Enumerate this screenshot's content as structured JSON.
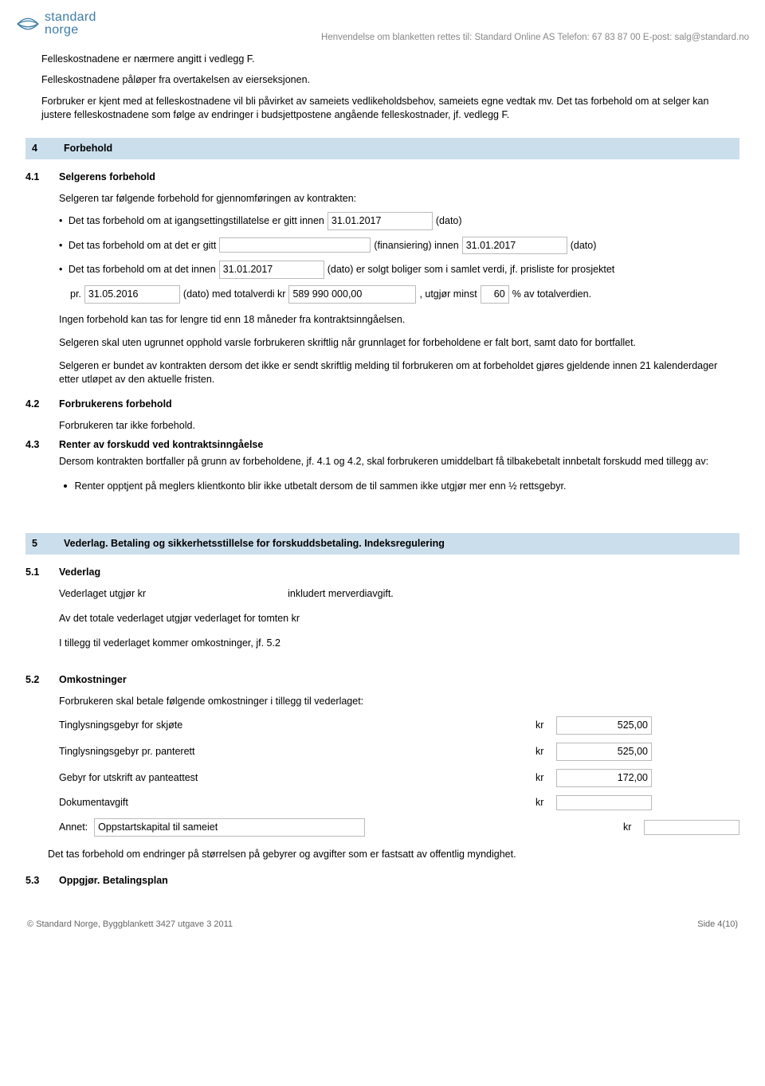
{
  "header": {
    "logo_line1": "standard",
    "logo_line2": "norge",
    "meta": "Henvendelse om blanketten rettes til: Standard Online AS   Telefon:  67 83 87 00   E-post: salg@standard.no"
  },
  "intro": {
    "p1": "Felleskostnadene er nærmere angitt i vedlegg F.",
    "p2": "Felleskostnadene påløper fra overtakelsen av eierseksjonen.",
    "p3": "Forbruker er kjent med at felleskostnadene vil bli påvirket av sameiets vedlikeholdsbehov, sameiets egne vedtak mv. Det tas forbehold om at selger kan justere felleskostnadene som følge av endringer i budsjettpostene angående felleskostnader, jf. vedlegg F."
  },
  "s4": {
    "num": "4",
    "title": "Forbehold",
    "s41": {
      "num": "4.1",
      "title": "Selgerens forbehold",
      "lead": "Selgeren tar følgende forbehold for gjennomføringen av kontrakten:",
      "b1_pre": "Det tas forbehold om at igangsettingstillatelse er gitt innen",
      "b1_date": "31.01.2017",
      "b1_suf": "(dato)",
      "b2_pre": "Det tas forbehold om at det er gitt",
      "b2_finan": "",
      "b2_mid": "(finansiering) innen",
      "b2_date": "31.01.2017",
      "b2_suf": "(dato)",
      "b3_pre": "Det tas forbehold om at det innen",
      "b3_date": "31.01.2017",
      "b3_suf": "(dato) er solgt boliger som i samlet verdi, jf. prisliste for prosjektet",
      "b3_pr": "pr.",
      "b3_date2": "31.05.2016",
      "b3_mid2": "(dato) med totalverdi kr",
      "b3_amount": "589 990 000,00",
      "b3_mid3": ", utgjør minst",
      "b3_pct": "60",
      "b3_end": "% av totalverdien.",
      "p_after1": "Ingen forbehold kan tas for lengre tid enn 18 måneder fra kontraktsinngåelsen.",
      "p_after2": "Selgeren skal uten ugrunnet opphold varsle forbrukeren skriftlig når grunnlaget for forbeholdene er falt bort, samt dato for bortfallet.",
      "p_after3": "Selgeren er bundet av kontrakten dersom det ikke er sendt skriftlig melding til forbrukeren om at forbeholdet gjøres gjeldende innen 21 kalenderdager etter utløpet av den aktuelle fristen."
    },
    "s42": {
      "num": "4.2",
      "title": "Forbrukerens forbehold",
      "body": "Forbrukeren tar ikke forbehold."
    },
    "s43": {
      "num": "4.3",
      "title": "Renter av forskudd ved kontraktsinngåelse",
      "body": "Dersom kontrakten bortfaller på grunn av forbeholdene, jf. 4.1 og 4.2, skal forbrukeren umiddelbart få tilbakebetalt innbetalt forskudd med tillegg av:",
      "bullet": "Renter opptjent på meglers klientkonto blir ikke utbetalt dersom de til sammen ikke utgjør mer enn ½ rettsgebyr."
    }
  },
  "s5": {
    "num": "5",
    "title": "Vederlag. Betaling og sikkerhetsstillelse for forskuddsbetaling. Indeksregulering",
    "s51": {
      "num": "5.1",
      "title": "Vederlag",
      "l1_pre": "Vederlaget utgjør kr",
      "l1_suf": "inkludert merverdiavgift.",
      "l2": "Av det totale vederlaget utgjør vederlaget for tomten kr",
      "l3": "I tillegg til vederlaget kommer omkostninger, jf. 5.2"
    },
    "s52": {
      "num": "5.2",
      "title": "Omkostninger",
      "lead": "Forbrukeren skal betale følgende omkostninger i tillegg til vederlaget:",
      "rows": [
        {
          "label": "Tinglysningsgebyr for skjøte",
          "kr": "kr",
          "val": "525,00"
        },
        {
          "label": "Tinglysningsgebyr pr. panterett",
          "kr": "kr",
          "val": "525,00"
        },
        {
          "label": "Gebyr for utskrift av panteattest",
          "kr": "kr",
          "val": "172,00"
        },
        {
          "label": "Dokumentavgift",
          "kr": "kr",
          "val": ""
        }
      ],
      "annet_label": "Annet:",
      "annet_val": "Oppstartskapital til sameiet",
      "annet_kr": "kr",
      "annet_amount": "",
      "footnote": "Det tas forbehold om endringer på størrelsen på gebyrer og avgifter som er fastsatt av offentlig myndighet."
    },
    "s53": {
      "num": "5.3",
      "title": "Oppgjør. Betalingsplan"
    }
  },
  "footer": {
    "left": "© Standard Norge, Byggblankett 3427 utgave 3 2011",
    "right": "Side 4(10)"
  }
}
